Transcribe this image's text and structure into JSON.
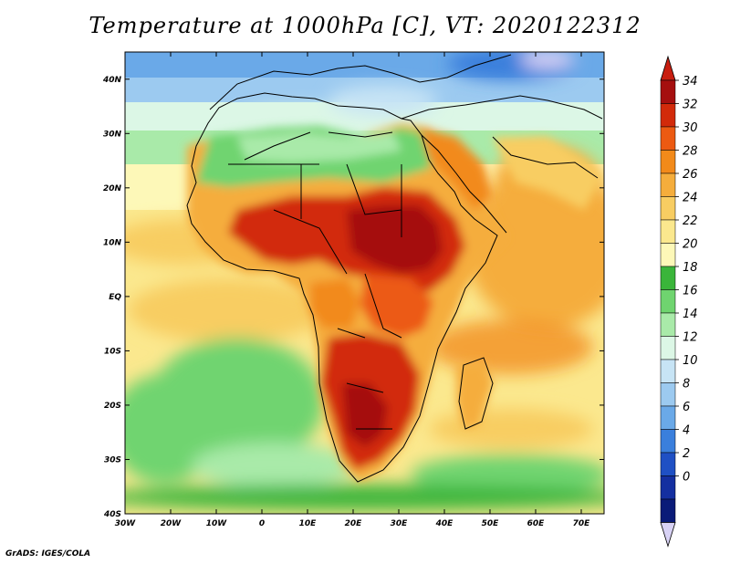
{
  "title": "Temperature at 1000hPa [C], VT: 2020122312",
  "footer": "GrADS: IGES/COLA",
  "map": {
    "lon_range": [
      -30,
      75
    ],
    "lat_range": [
      -40,
      45
    ],
    "lon_ticks": [
      "30W",
      "20W",
      "10W",
      "0",
      "10E",
      "20E",
      "30E",
      "40E",
      "50E",
      "60E",
      "70E"
    ],
    "lat_ticks": [
      "40N",
      "30N",
      "20N",
      "10N",
      "EQ",
      "10S",
      "20S",
      "30S",
      "40S"
    ]
  },
  "colorbar": {
    "labels": [
      "34",
      "32",
      "30",
      "28",
      "26",
      "24",
      "22",
      "20",
      "18",
      "16",
      "14",
      "12",
      "10",
      "8",
      "6",
      "4",
      "2",
      "0"
    ],
    "colors": [
      "#a50f0f",
      "#d22a0a",
      "#ec5a12",
      "#f28a1a",
      "#f5ad3c",
      "#f8cd62",
      "#fbe88e",
      "#fdf8b8",
      "#3ab53a",
      "#6fd46f",
      "#a9eaa9",
      "#dcf7e6",
      "#c7e4f5",
      "#9ccaf0",
      "#6aa9e8",
      "#3a7fdc",
      "#1f50c4",
      "#142fa0",
      "#0a1b78"
    ],
    "over_color": "#c81e10",
    "under_color": "#d8d2f5"
  }
}
